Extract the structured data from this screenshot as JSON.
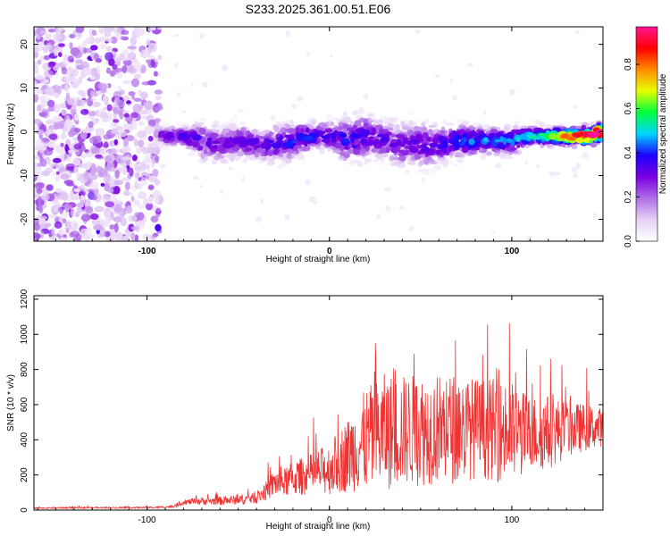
{
  "figure": {
    "title": "S233.2025.361.00.51.E06"
  },
  "chart_data": [
    {
      "type": "heatmap",
      "title": "",
      "xlabel": "Height of straight line (km)",
      "ylabel": "Frequency (Hz)",
      "xlim": [
        -162,
        150
      ],
      "ylim": [
        -25,
        24
      ],
      "x_ticks": [
        {
          "value": -100,
          "label": "-100"
        },
        {
          "value": 0,
          "label": "0"
        },
        {
          "value": 100,
          "label": "100"
        }
      ],
      "y_ticks": [
        {
          "value": 20,
          "label": "20"
        },
        {
          "value": 10,
          "label": "10"
        },
        {
          "value": 0,
          "label": "0"
        },
        {
          "value": -10,
          "label": "-10"
        },
        {
          "value": -20,
          "label": "-20"
        }
      ],
      "colorbar": {
        "label": "Normalized spectral amplitude",
        "range": [
          0,
          0.97
        ],
        "ticks": [
          {
            "value": 0.0,
            "label": "0.0"
          },
          {
            "value": 0.2,
            "label": "0.2"
          },
          {
            "value": 0.4,
            "label": "0.4"
          },
          {
            "value": 0.6,
            "label": "0.6"
          },
          {
            "value": 0.8,
            "label": "0.8"
          }
        ],
        "colors": [
          "#ffffff",
          "#e6d2f5",
          "#b06de8",
          "#7a00e0",
          "#1e00ff",
          "#00d4ff",
          "#00ff40",
          "#e6ff00",
          "#ff8c00",
          "#ff0000",
          "#ff1493"
        ]
      },
      "noise_region_x": [
        -162,
        -93
      ],
      "ridge": {
        "x": [
          -93,
          -80,
          -70,
          -60,
          -50,
          -40,
          -30,
          -20,
          -10,
          0,
          10,
          20,
          30,
          40,
          50,
          60,
          70,
          80,
          90,
          100,
          110,
          120,
          130,
          140,
          150
        ],
        "center_hz": [
          -1,
          -1,
          -2,
          -3,
          -2,
          -3,
          -3,
          -2,
          -1,
          -1,
          -2,
          -1,
          -2,
          -3,
          -3,
          -3,
          -2,
          -2,
          -2,
          -2,
          -1,
          -1,
          -1,
          -1,
          0
        ],
        "half_width_hz": [
          2,
          2,
          4,
          4,
          4,
          3,
          4,
          4,
          3,
          3,
          5,
          5,
          4,
          5,
          5,
          4,
          4,
          3,
          3,
          3,
          2,
          2,
          2,
          2,
          2
        ],
        "amplitude": [
          0.25,
          0.3,
          0.3,
          0.25,
          0.28,
          0.3,
          0.32,
          0.35,
          0.35,
          0.3,
          0.35,
          0.3,
          0.3,
          0.28,
          0.3,
          0.32,
          0.35,
          0.4,
          0.4,
          0.4,
          0.45,
          0.5,
          0.7,
          0.85,
          0.9
        ]
      }
    },
    {
      "type": "line",
      "title": "",
      "xlabel": "Height of straight line (km)",
      "ylabel": "SNR (10 * v/v)",
      "xlim": [
        -162,
        150
      ],
      "ylim": [
        0,
        1220
      ],
      "x_ticks": [
        {
          "value": -100,
          "label": "-100"
        },
        {
          "value": 0,
          "label": "0"
        },
        {
          "value": 100,
          "label": "100"
        }
      ],
      "y_ticks": [
        {
          "value": 0,
          "label": "0"
        },
        {
          "value": 200,
          "label": "200"
        },
        {
          "value": 400,
          "label": "400"
        },
        {
          "value": 600,
          "label": "600"
        },
        {
          "value": 800,
          "label": "800"
        },
        {
          "value": 1000,
          "label": "1000"
        },
        {
          "value": 1200,
          "label": "1200"
        }
      ],
      "series": [
        {
          "name": "SNR",
          "color": "#ee3333",
          "x": [
            -162,
            -140,
            -120,
            -100,
            -90,
            -85,
            -80,
            -70,
            -60,
            -50,
            -40,
            -35,
            -30,
            -25,
            -20,
            -10,
            0,
            10,
            20,
            30,
            40,
            50,
            60,
            70,
            80,
            90,
            100,
            110,
            120,
            130,
            140,
            150
          ],
          "baseline": [
            10,
            12,
            12,
            13,
            15,
            20,
            40,
            45,
            45,
            50,
            60,
            90,
            130,
            130,
            150,
            170,
            190,
            250,
            310,
            340,
            360,
            360,
            370,
            370,
            380,
            370,
            350,
            370,
            380,
            410,
            430,
            440
          ],
          "spread": [
            8,
            10,
            10,
            10,
            15,
            20,
            30,
            50,
            55,
            60,
            70,
            120,
            180,
            180,
            220,
            260,
            330,
            470,
            650,
            750,
            700,
            720,
            700,
            700,
            640,
            650,
            650,
            480,
            480,
            360,
            300,
            240
          ]
        }
      ]
    }
  ]
}
